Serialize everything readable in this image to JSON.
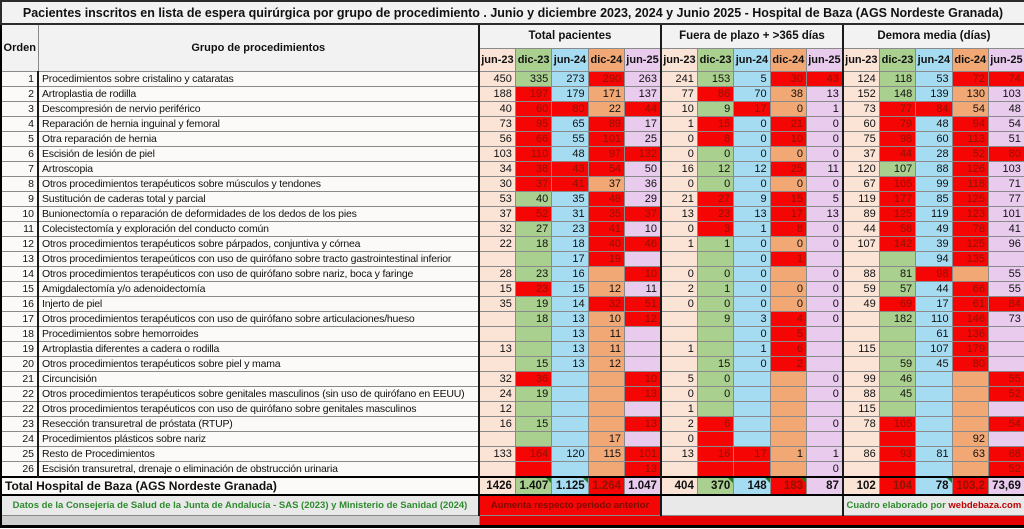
{
  "title": "Pacientes inscritos en lista de espera quirúrgica por grupo de procedimiento . Junio y diciembre 2023, 2024 y Junio 2025 - Hospital de Baza (AGS Nordeste Granada)",
  "columns": {
    "orden": "Orden",
    "grupo": "Grupo de procedimientos",
    "groups": [
      {
        "label": "Total pacientes"
      },
      {
        "label": "Fuera de plazo + >365 días"
      },
      {
        "label": "Demora media (días)"
      }
    ],
    "months": [
      "jun-23",
      "dic-23",
      "jun-24",
      "dic-24",
      "jun-25"
    ]
  },
  "colors": {
    "jun23": "#fbe3d6",
    "dic23": "#a9d08e",
    "jun24": "#a6dcf2",
    "dic24": "#f1a875",
    "jun25": "#e9cbee",
    "increase_fill": "#f60505",
    "increase_text": "#8c1400",
    "source_text": "#2e8b2e",
    "credit_site_text": "#c00000",
    "marker_green": "#1e7a1e"
  },
  "rows": [
    {
      "o": "1",
      "g": "Procedimientos sobre cristalino y cataratas",
      "tp": {
        "v": [
          "450",
          "335",
          "273",
          "290",
          "263"
        ],
        "r": [
          3
        ]
      },
      "fp": {
        "v": [
          "241",
          "153",
          "5",
          "30",
          "43"
        ],
        "r": [
          3,
          4
        ]
      },
      "dm": {
        "v": [
          "124",
          "118",
          "53",
          "72",
          "74"
        ],
        "r": [
          3,
          4
        ]
      }
    },
    {
      "o": "2",
      "g": "Artroplastia de rodilla",
      "tp": {
        "v": [
          "188",
          "197",
          "179",
          "171",
          "137"
        ],
        "r": [
          1
        ]
      },
      "fp": {
        "v": [
          "77",
          "86",
          "70",
          "38",
          "13"
        ],
        "r": [
          1
        ]
      },
      "dm": {
        "v": [
          "152",
          "148",
          "139",
          "130",
          "103"
        ],
        "r": []
      }
    },
    {
      "o": "3",
      "g": "Descompresión de nervio periférico",
      "tp": {
        "v": [
          "40",
          "60",
          "80",
          "22",
          "44"
        ],
        "r": [
          1,
          2,
          4
        ]
      },
      "fp": {
        "v": [
          "10",
          "9",
          "17",
          "0",
          "1"
        ],
        "r": [
          2
        ]
      },
      "dm": {
        "v": [
          "73",
          "77",
          "84",
          "54",
          "48"
        ],
        "r": [
          1,
          2
        ]
      }
    },
    {
      "o": "4",
      "g": "Reparación de hernia inguinal y femoral",
      "tp": {
        "v": [
          "73",
          "95",
          "65",
          "89",
          "17"
        ],
        "r": [
          1,
          3
        ]
      },
      "fp": {
        "v": [
          "1",
          "15",
          "0",
          "21",
          "0"
        ],
        "r": [
          1,
          3
        ]
      },
      "dm": {
        "v": [
          "60",
          "79",
          "48",
          "94",
          "54"
        ],
        "r": [
          1,
          3
        ]
      }
    },
    {
      "o": "5",
      "g": "Otra reparación de hernia",
      "tp": {
        "v": [
          "56",
          "66",
          "55",
          "101",
          "25"
        ],
        "r": [
          1,
          3
        ]
      },
      "fp": {
        "v": [
          "0",
          "8",
          "0",
          "10",
          "0"
        ],
        "r": [
          1,
          3
        ]
      },
      "dm": {
        "v": [
          "75",
          "98",
          "60",
          "113",
          "51"
        ],
        "r": [
          1,
          3
        ]
      }
    },
    {
      "o": "6",
      "g": "Escisión de lesión de piel",
      "tp": {
        "v": [
          "103",
          "110",
          "48",
          "97",
          "132"
        ],
        "r": [
          1,
          3,
          4
        ]
      },
      "fp": {
        "v": [
          "0",
          "0",
          "0",
          "0",
          "0"
        ],
        "r": []
      },
      "dm": {
        "v": [
          "37",
          "44",
          "28",
          "52",
          "80"
        ],
        "r": [
          1,
          3,
          4
        ]
      }
    },
    {
      "o": "7",
      "g": "Artroscopia",
      "tp": {
        "v": [
          "34",
          "38",
          "43",
          "54",
          "50"
        ],
        "r": [
          1,
          2,
          3
        ]
      },
      "fp": {
        "v": [
          "16",
          "12",
          "12",
          "25",
          "11"
        ],
        "r": [
          3
        ]
      },
      "dm": {
        "v": [
          "120",
          "107",
          "88",
          "126",
          "103"
        ],
        "r": [
          3
        ]
      }
    },
    {
      "o": "8",
      "g": "Otros procedimientos terapéuticos sobre músculos y tendones",
      "tp": {
        "v": [
          "30",
          "37",
          "41",
          "37",
          "36"
        ],
        "r": [
          1,
          2
        ]
      },
      "fp": {
        "v": [
          "0",
          "0",
          "0",
          "0",
          "0"
        ],
        "r": []
      },
      "dm": {
        "v": [
          "67",
          "105",
          "99",
          "118",
          "71"
        ],
        "r": [
          1,
          3
        ]
      }
    },
    {
      "o": "9",
      "g": "Sustitución de caderas total y parcial",
      "tp": {
        "v": [
          "53",
          "40",
          "35",
          "48",
          "29"
        ],
        "r": [
          3
        ]
      },
      "fp": {
        "v": [
          "21",
          "27",
          "9",
          "15",
          "5"
        ],
        "r": [
          1,
          3
        ]
      },
      "dm": {
        "v": [
          "119",
          "177",
          "85",
          "125",
          "77"
        ],
        "r": [
          1,
          3
        ]
      }
    },
    {
      "o": "10",
      "g": "Bunionectomía o reparación de deformidades de los dedos de los pies",
      "tp": {
        "v": [
          "37",
          "52",
          "31",
          "35",
          "37"
        ],
        "r": [
          1,
          3,
          4
        ]
      },
      "fp": {
        "v": [
          "13",
          "23",
          "13",
          "17",
          "13"
        ],
        "r": [
          1,
          3
        ]
      },
      "dm": {
        "v": [
          "89",
          "125",
          "119",
          "123",
          "101"
        ],
        "r": [
          1,
          3
        ]
      }
    },
    {
      "o": "11",
      "g": "Colecistectomía y exploración del conducto común",
      "tp": {
        "v": [
          "32",
          "27",
          "23",
          "41",
          "10"
        ],
        "r": [
          3
        ]
      },
      "fp": {
        "v": [
          "0",
          "3",
          "1",
          "8",
          "0"
        ],
        "r": [
          1,
          3
        ]
      },
      "dm": {
        "v": [
          "44",
          "58",
          "49",
          "78",
          "41"
        ],
        "r": [
          1,
          3
        ]
      }
    },
    {
      "o": "12",
      "g": "Otros procedimientos terapéuticos sobre párpados, conjuntiva y córnea",
      "tp": {
        "v": [
          "22",
          "18",
          "18",
          "40",
          "46"
        ],
        "r": [
          3,
          4
        ]
      },
      "fp": {
        "v": [
          "1",
          "1",
          "0",
          "0",
          "0"
        ],
        "r": []
      },
      "dm": {
        "v": [
          "107",
          "142",
          "39",
          "125",
          "96"
        ],
        "r": [
          1,
          3
        ]
      }
    },
    {
      "o": "13",
      "g": "Otros procedimientos terapeúticos con uso de quirófano sobre tracto gastrointestinal inferior",
      "tp": {
        "v": [
          "",
          "",
          "17",
          "19",
          ""
        ],
        "r": [
          3
        ]
      },
      "fp": {
        "v": [
          "",
          "",
          "0",
          "1",
          ""
        ],
        "r": [
          3
        ]
      },
      "dm": {
        "v": [
          "",
          "",
          "94",
          "135",
          ""
        ],
        "r": [
          3
        ]
      }
    },
    {
      "o": "14",
      "g": "Otros procedimientos terapéuticos con uso de quirófano sobre nariz, boca y faringe",
      "tp": {
        "v": [
          "28",
          "23",
          "16",
          "",
          "10"
        ],
        "r": [
          4
        ]
      },
      "fp": {
        "v": [
          "0",
          "0",
          "0",
          "",
          "0"
        ],
        "r": []
      },
      "dm": {
        "v": [
          "88",
          "81",
          "98",
          "",
          "55"
        ],
        "r": [
          2
        ]
      }
    },
    {
      "o": "15",
      "g": "Amigdalectomía y/o adenoidectomía",
      "tp": {
        "v": [
          "15",
          "23",
          "15",
          "12",
          "11"
        ],
        "r": [
          1
        ]
      },
      "fp": {
        "v": [
          "2",
          "1",
          "0",
          "0",
          "0"
        ],
        "r": []
      },
      "dm": {
        "v": [
          "59",
          "57",
          "44",
          "66",
          "55"
        ],
        "r": [
          3
        ]
      }
    },
    {
      "o": "16",
      "g": "Injerto de piel",
      "tp": {
        "v": [
          "35",
          "19",
          "14",
          "32",
          "51"
        ],
        "r": [
          3,
          4
        ]
      },
      "fp": {
        "v": [
          "0",
          "0",
          "0",
          "0",
          "0"
        ],
        "r": []
      },
      "dm": {
        "v": [
          "49",
          "69",
          "17",
          "61",
          "84"
        ],
        "r": [
          1,
          3,
          4
        ]
      }
    },
    {
      "o": "17",
      "g": "Otros procedimientos terapéuticos con uso de quirófano sobre articulaciones/hueso",
      "tp": {
        "v": [
          "",
          "18",
          "13",
          "10",
          "12"
        ],
        "r": [
          4
        ]
      },
      "fp": {
        "v": [
          "",
          "9",
          "3",
          "4",
          "0"
        ],
        "r": [
          3
        ]
      },
      "dm": {
        "v": [
          "",
          "182",
          "110",
          "146",
          "73"
        ],
        "r": [
          3
        ]
      }
    },
    {
      "o": "18",
      "g": "Procedimientos sobre hemorroides",
      "tp": {
        "v": [
          "",
          "",
          "13",
          "11",
          ""
        ],
        "r": []
      },
      "fp": {
        "v": [
          "",
          "",
          "0",
          "5",
          ""
        ],
        "r": [
          3
        ]
      },
      "dm": {
        "v": [
          "",
          "",
          "61",
          "136",
          ""
        ],
        "r": [
          3
        ]
      }
    },
    {
      "o": "19",
      "g": "Artroplastia diferentes a cadera o rodilla",
      "tp": {
        "v": [
          "13",
          "",
          "13",
          "11",
          ""
        ],
        "r": []
      },
      "fp": {
        "v": [
          "1",
          "",
          "1",
          "6",
          ""
        ],
        "r": [
          3
        ]
      },
      "dm": {
        "v": [
          "115",
          "",
          "107",
          "179",
          ""
        ],
        "r": [
          3
        ]
      }
    },
    {
      "o": "20",
      "g": "Otros procedimientos terapéuticos sobre piel y mama",
      "tp": {
        "v": [
          "",
          "15",
          "13",
          "12",
          ""
        ],
        "r": []
      },
      "fp": {
        "v": [
          "",
          "15",
          "0",
          "2",
          ""
        ],
        "r": [
          3
        ]
      },
      "dm": {
        "v": [
          "",
          "59",
          "45",
          "80",
          ""
        ],
        "r": [
          3
        ]
      }
    },
    {
      "o": "21",
      "g": "Circuncisión",
      "tp": {
        "v": [
          "32",
          "36",
          "",
          "",
          "10"
        ],
        "r": [
          1,
          4
        ]
      },
      "fp": {
        "v": [
          "5",
          "0",
          "",
          "",
          "0"
        ],
        "r": []
      },
      "dm": {
        "v": [
          "99",
          "46",
          "",
          "",
          "55"
        ],
        "r": [
          4
        ]
      }
    },
    {
      "o": "22",
      "g": "Otros procedimientos terapéuticos sobre genitales masculinos (sin uso de quirófano en EEUU)",
      "tp": {
        "v": [
          "24",
          "19",
          "",
          "",
          "13"
        ],
        "r": [
          4
        ]
      },
      "fp": {
        "v": [
          "0",
          "0",
          "",
          "",
          "0"
        ],
        "r": []
      },
      "dm": {
        "v": [
          "88",
          "45",
          "",
          "",
          "52"
        ],
        "r": [
          4
        ]
      }
    },
    {
      "o": "22",
      "g": "Otros procedimientos terapéuticos con uso de quirófano sobre genitales masculinos",
      "tp": {
        "v": [
          "12",
          "",
          "",
          "",
          ""
        ],
        "r": []
      },
      "fp": {
        "v": [
          "1",
          "",
          "",
          "",
          ""
        ],
        "r": []
      },
      "dm": {
        "v": [
          "115",
          "",
          "",
          "",
          ""
        ],
        "r": []
      }
    },
    {
      "o": "23",
      "g": "Resección transuretral de próstata (RTUP)",
      "tp": {
        "v": [
          "16",
          "15",
          "",
          "",
          "13"
        ],
        "r": [
          4
        ]
      },
      "fp": {
        "v": [
          "2",
          "6",
          "",
          "",
          "0"
        ],
        "r": [
          1
        ]
      },
      "dm": {
        "v": [
          "78",
          "105",
          "",
          "",
          "54"
        ],
        "r": [
          1,
          4
        ]
      }
    },
    {
      "o": "24",
      "g": "Procedimientos plásticos sobre nariz",
      "tp": {
        "v": [
          "",
          "",
          "",
          "17",
          ""
        ],
        "r": []
      },
      "fp": {
        "v": [
          "0",
          "",
          "",
          "",
          ""
        ],
        "r": [
          1
        ]
      },
      "dm": {
        "v": [
          "",
          "",
          "",
          "92",
          ""
        ],
        "r": [
          1
        ]
      }
    },
    {
      "o": "25",
      "g": "Resto de Procedimientos",
      "tp": {
        "v": [
          "133",
          "164",
          "120",
          "115",
          "101"
        ],
        "r": [
          1,
          4
        ]
      },
      "fp": {
        "v": [
          "13",
          "16",
          "17",
          "1",
          "1"
        ],
        "r": [
          1,
          2
        ]
      },
      "dm": {
        "v": [
          "86",
          "93",
          "81",
          "63",
          "68"
        ],
        "r": [
          1,
          4
        ]
      }
    },
    {
      "o": "26",
      "g": "Escisión transuretral, drenaje o eliminación de obstrucción urinaria",
      "tp": {
        "v": [
          "",
          "",
          "",
          "",
          "13"
        ],
        "r": [
          1,
          4
        ]
      },
      "fp": {
        "v": [
          "",
          "",
          "",
          "",
          "0"
        ],
        "r": [
          1,
          2
        ]
      },
      "dm": {
        "v": [
          "",
          "",
          "",
          "",
          "52"
        ],
        "r": [
          1,
          4
        ]
      }
    }
  ],
  "total": {
    "label": "Total Hospital de Baza (AGS Nordeste Granada)",
    "tp": {
      "v": [
        "1426",
        "1.407",
        "1.125",
        "1.264",
        "1.047"
      ],
      "r": [
        3
      ],
      "m": [
        1,
        2
      ]
    },
    "fp": {
      "v": [
        "404",
        "370",
        "148",
        "183",
        "87"
      ],
      "r": [
        3
      ],
      "m": [
        1,
        2,
        3
      ]
    },
    "dm": {
      "v": [
        "102",
        "104",
        "78",
        "103,2",
        "73,69"
      ],
      "r": [
        1,
        3
      ],
      "m": [
        2
      ]
    }
  },
  "footer": {
    "source": "Datos de la Consejería de Salud de la Junta de Andalucía - SAS (2023) y Ministerio de Sanidad (2024)",
    "legend": "Aumenta respecto periodo anterior",
    "credit_prefix": "Cuadro elaborado por ",
    "credit_site": "webdebaza.com"
  }
}
